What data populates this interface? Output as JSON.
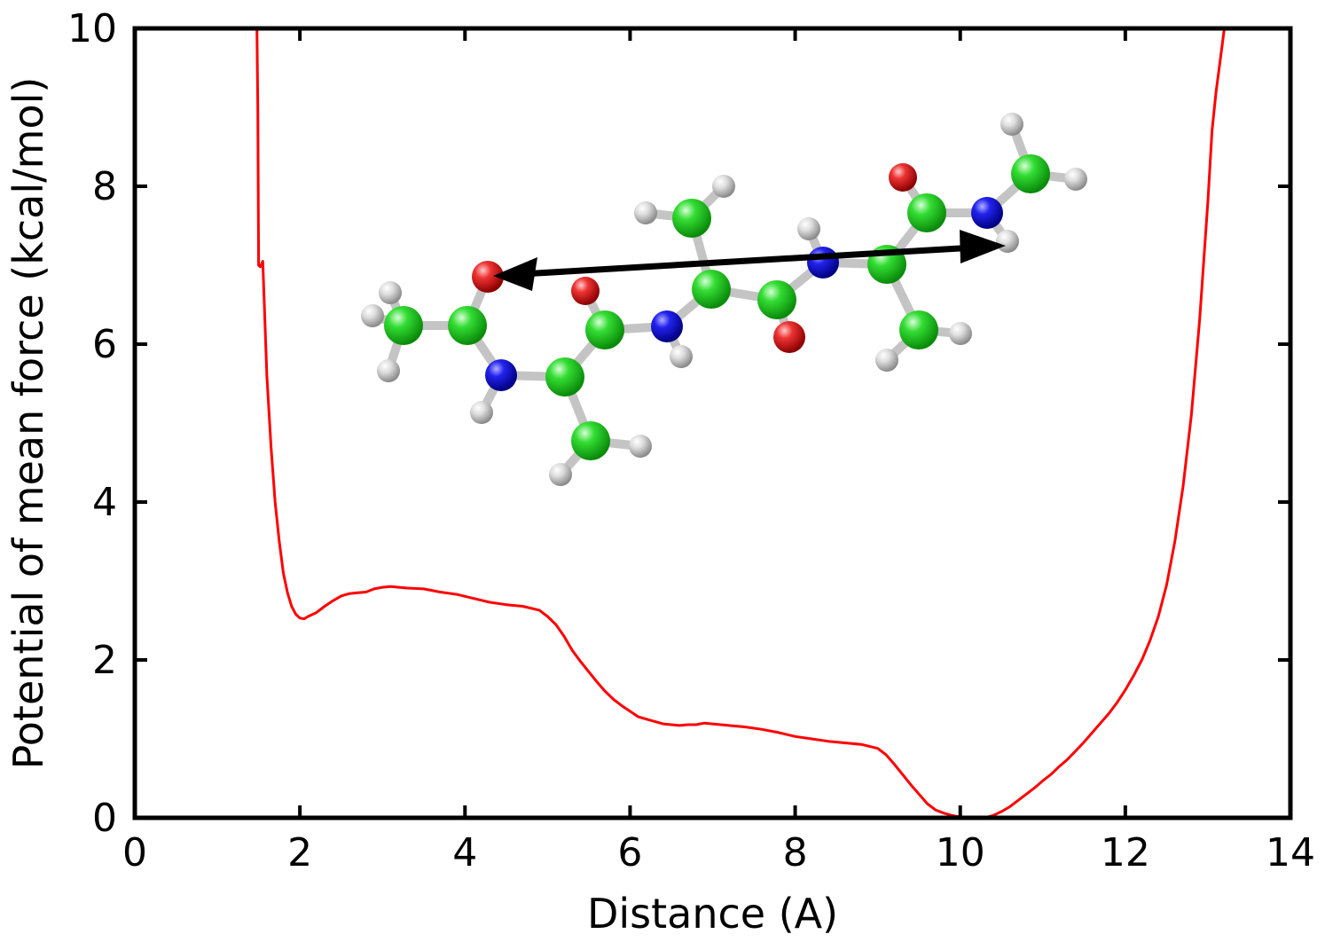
{
  "chart_data": {
    "type": "line",
    "title": "",
    "xlabel": "Distance (A)",
    "ylabel": "Potential of mean force (kcal/mol)",
    "xlim": [
      0,
      14
    ],
    "ylim": [
      0,
      10
    ],
    "xticks": [
      0,
      2,
      4,
      6,
      8,
      10,
      12,
      14
    ],
    "yticks": [
      0,
      2,
      4,
      6,
      8,
      10
    ],
    "grid": false,
    "legend": "none",
    "series": [
      {
        "color": "#ff0000",
        "x": [
          1.48,
          1.49,
          1.5,
          1.52,
          1.55,
          1.6,
          1.65,
          1.7,
          1.75,
          1.8,
          1.85,
          1.9,
          1.95,
          2.0,
          2.05,
          2.1,
          2.2,
          2.3,
          2.4,
          2.5,
          2.6,
          2.7,
          2.8,
          2.9,
          3.0,
          3.1,
          3.2,
          3.3,
          3.5,
          3.7,
          3.9,
          4.1,
          4.3,
          4.5,
          4.7,
          4.9,
          5.0,
          5.1,
          5.2,
          5.3,
          5.4,
          5.5,
          5.6,
          5.7,
          5.8,
          5.9,
          6.0,
          6.1,
          6.2,
          6.3,
          6.4,
          6.5,
          6.6,
          6.7,
          6.8,
          6.9,
          7.0,
          7.2,
          7.4,
          7.6,
          7.8,
          8.0,
          8.2,
          8.4,
          8.6,
          8.8,
          9.0,
          9.1,
          9.2,
          9.3,
          9.4,
          9.5,
          9.6,
          9.7,
          9.8,
          9.9,
          10.0,
          10.1,
          10.2,
          10.3,
          10.4,
          10.5,
          10.6,
          10.7,
          10.8,
          10.9,
          11.0,
          11.1,
          11.2,
          11.3,
          11.4,
          11.5,
          11.6,
          11.7,
          11.8,
          11.9,
          12.0,
          12.1,
          12.2,
          12.3,
          12.4,
          12.5,
          12.6,
          12.7,
          12.8,
          12.9,
          13.0,
          13.05,
          13.1,
          13.15,
          13.2
        ],
        "y": [
          10.0,
          9.0,
          7.0,
          6.98,
          7.05,
          5.6,
          4.7,
          4.0,
          3.5,
          3.1,
          2.85,
          2.68,
          2.58,
          2.53,
          2.52,
          2.55,
          2.6,
          2.68,
          2.75,
          2.81,
          2.84,
          2.85,
          2.86,
          2.9,
          2.92,
          2.93,
          2.92,
          2.91,
          2.9,
          2.86,
          2.83,
          2.78,
          2.73,
          2.7,
          2.68,
          2.63,
          2.55,
          2.45,
          2.3,
          2.12,
          1.98,
          1.85,
          1.72,
          1.6,
          1.5,
          1.42,
          1.35,
          1.28,
          1.25,
          1.22,
          1.19,
          1.18,
          1.17,
          1.18,
          1.18,
          1.2,
          1.19,
          1.17,
          1.15,
          1.12,
          1.08,
          1.03,
          1.0,
          0.97,
          0.95,
          0.93,
          0.88,
          0.8,
          0.68,
          0.55,
          0.42,
          0.3,
          0.18,
          0.1,
          0.06,
          0.03,
          0.01,
          0.0,
          0.0,
          0.0,
          0.03,
          0.08,
          0.14,
          0.22,
          0.3,
          0.38,
          0.47,
          0.55,
          0.65,
          0.74,
          0.85,
          0.96,
          1.08,
          1.2,
          1.32,
          1.46,
          1.62,
          1.8,
          2.0,
          2.25,
          2.55,
          2.95,
          3.5,
          4.2,
          5.1,
          6.3,
          7.8,
          8.7,
          9.2,
          9.6,
          10.0
        ]
      }
    ]
  }
}
